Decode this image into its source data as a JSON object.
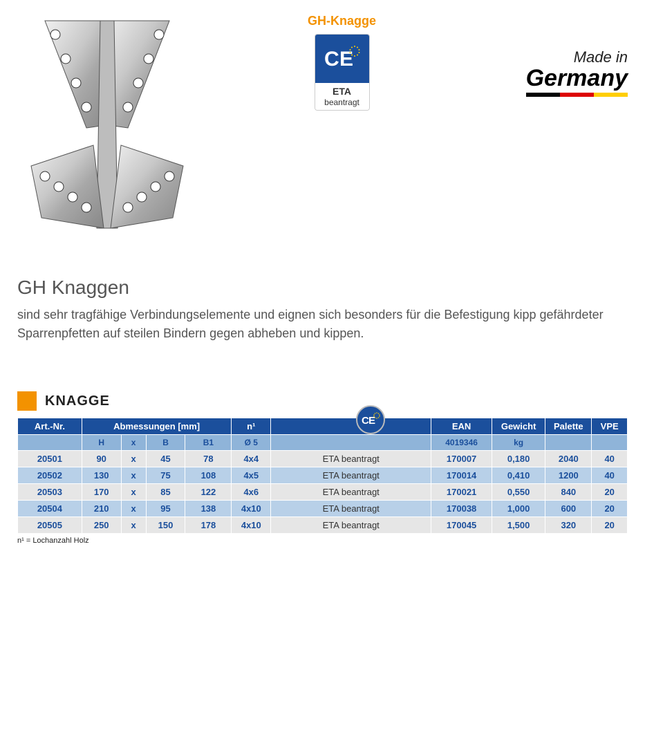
{
  "badge": {
    "title": "GH-Knagge",
    "eta": "ETA",
    "beantragt": "beantragt"
  },
  "madeIn": {
    "line1": "Made in",
    "line2": "Germany",
    "flag": [
      "#000000",
      "#dd0000",
      "#ffce00"
    ]
  },
  "heading": "GH Knaggen",
  "description": "sind sehr tragfähige Verbindungselemente und eignen sich besonders für die Befestigung kipp gefährdeter Sparrenpfetten auf steilen Bindern gegen abheben und kippen.",
  "section": {
    "title": "KNAGGE",
    "accent": "#f39200"
  },
  "table": {
    "hdr1": {
      "art": "Art.-Nr.",
      "abm": "Abmessungen [mm]",
      "n": "n¹",
      "ean": "EAN",
      "gewicht": "Gewicht",
      "palette": "Palette",
      "vpe": "VPE"
    },
    "hdr2": {
      "h": "H",
      "x": "x",
      "b": "B",
      "b1": "B1",
      "d5": "Ø 5",
      "ean_sub": "4019346",
      "kg": "kg"
    },
    "rows": [
      {
        "art": "20501",
        "h": "90",
        "x": "x",
        "b": "45",
        "b1": "78",
        "n": "4x4",
        "status": "ETA beantragt",
        "ean": "170007",
        "gew": "0,180",
        "pal": "2040",
        "vpe": "40"
      },
      {
        "art": "20502",
        "h": "130",
        "x": "x",
        "b": "75",
        "b1": "108",
        "n": "4x5",
        "status": "ETA beantragt",
        "ean": "170014",
        "gew": "0,410",
        "pal": "1200",
        "vpe": "40"
      },
      {
        "art": "20503",
        "h": "170",
        "x": "x",
        "b": "85",
        "b1": "122",
        "n": "4x6",
        "status": "ETA beantragt",
        "ean": "170021",
        "gew": "0,550",
        "pal": "840",
        "vpe": "20"
      },
      {
        "art": "20504",
        "h": "210",
        "x": "x",
        "b": "95",
        "b1": "138",
        "n": "4x10",
        "status": "ETA beantragt",
        "ean": "170038",
        "gew": "1,000",
        "pal": "600",
        "vpe": "20"
      },
      {
        "art": "20505",
        "h": "250",
        "x": "x",
        "b": "150",
        "b1": "178",
        "n": "4x10",
        "status": "ETA beantragt",
        "ean": "170045",
        "gew": "1,500",
        "pal": "320",
        "vpe": "20"
      }
    ]
  },
  "footnote": "n¹ = Lochanzahl Holz",
  "colors": {
    "primary_blue": "#1b4f9c",
    "light_blue": "#b8d0e8",
    "header_blue2": "#8fb4d9",
    "grey_row": "#e6e6e6",
    "orange": "#f39200"
  }
}
